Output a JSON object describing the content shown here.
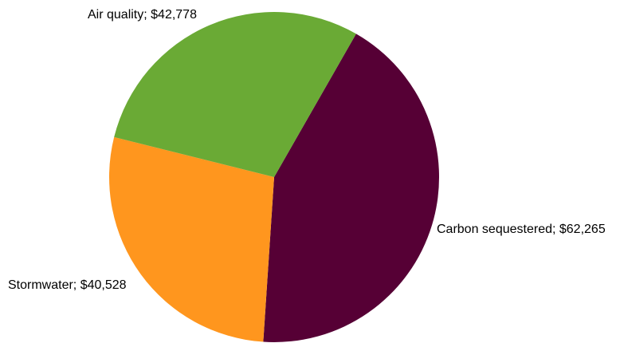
{
  "chart_data": {
    "type": "pie",
    "title": "",
    "legend": "none",
    "unit_prefix": "$",
    "slices": [
      {
        "name": "Carbon sequestered",
        "value": 62265,
        "label": "Carbon sequestered; $62,265",
        "color": "#560035"
      },
      {
        "name": "Stormwater",
        "value": 40528,
        "label": "Stormwater; $40,528",
        "color": "#ff961e"
      },
      {
        "name": "Air quality",
        "value": 42778,
        "label": "Air quality; $42,778",
        "color": "#6aaa35"
      }
    ]
  }
}
